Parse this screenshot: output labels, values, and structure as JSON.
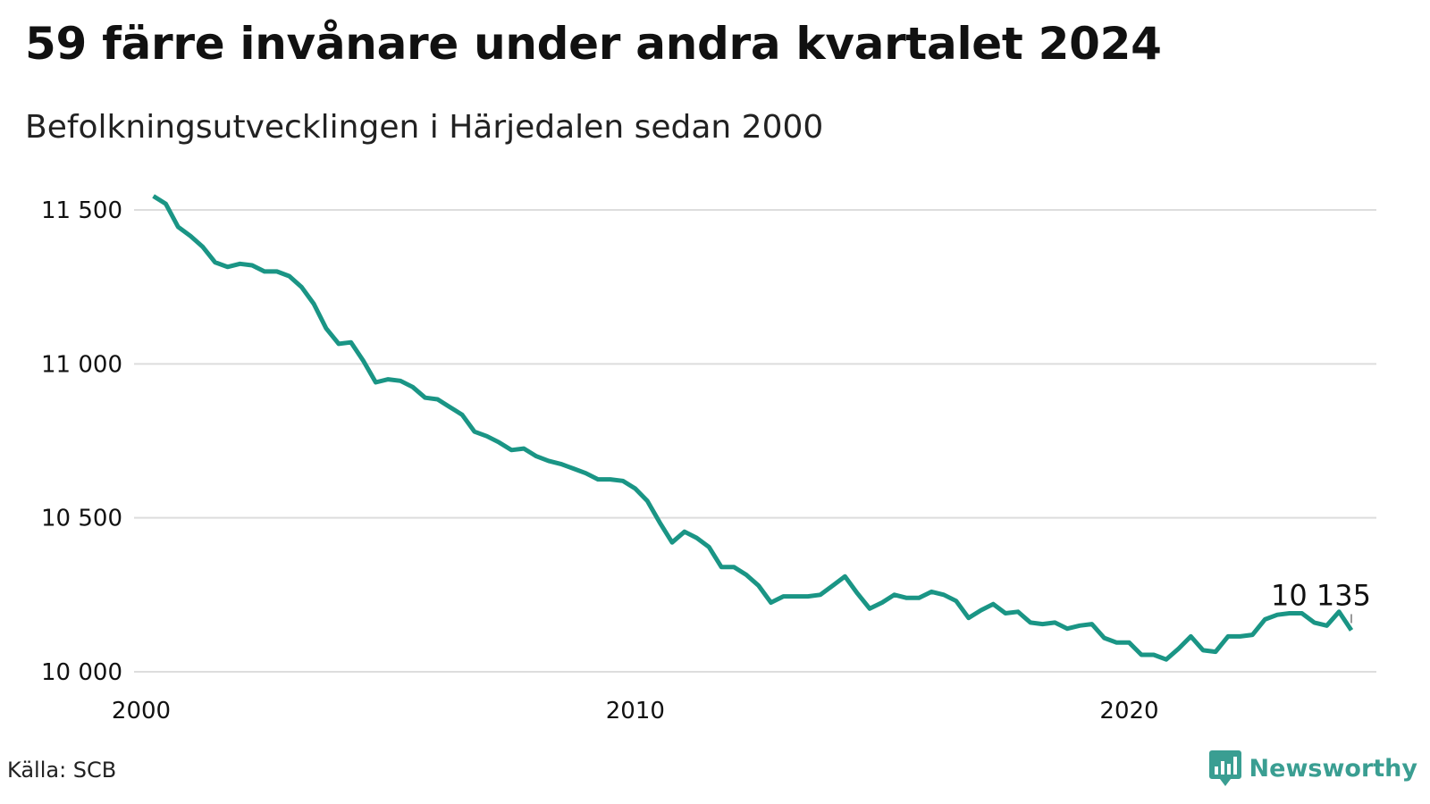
{
  "title": "59 färre invånare under andra kvartalet 2024",
  "subtitle": "Befolkningsutvecklingen i Härjedalen sedan 2000",
  "source": "Källa: SCB",
  "brand": {
    "name": "Newsworthy",
    "icon": "newsworthy-logo-icon",
    "color": "#3a9e92"
  },
  "colors": {
    "line": "#1a9585",
    "grid": "#dddddd",
    "text": "#111111"
  },
  "chart_data": {
    "type": "line",
    "title": "59 färre invånare under andra kvartalet 2024",
    "subtitle": "Befolkningsutvecklingen i Härjedalen sedan 2000",
    "xlabel": "",
    "ylabel": "",
    "xlim": [
      "2000-01-01",
      "2025-01-01"
    ],
    "ylim": [
      10000,
      11500
    ],
    "xticks": [
      "2000",
      "2010",
      "2020"
    ],
    "yticks": [
      {
        "value": 10000,
        "label": "10 000"
      },
      {
        "value": 10500,
        "label": "10 500"
      },
      {
        "value": 11000,
        "label": "11 000"
      },
      {
        "value": 11500,
        "label": "11 500"
      }
    ],
    "grid": "horizontal",
    "legend": "none",
    "annotation": {
      "label": "10 135",
      "x": "2024-06-30",
      "y": 10135
    },
    "series": [
      {
        "color": "#1a9585",
        "points": [
          [
            "2000-03-31",
            11545
          ],
          [
            "2000-06-30",
            11520
          ],
          [
            "2000-09-30",
            11445
          ],
          [
            "2000-12-31",
            11415
          ],
          [
            "2001-03-31",
            11380
          ],
          [
            "2001-06-30",
            11330
          ],
          [
            "2001-09-30",
            11315
          ],
          [
            "2001-12-31",
            11325
          ],
          [
            "2002-03-31",
            11320
          ],
          [
            "2002-06-30",
            11300
          ],
          [
            "2002-09-30",
            11300
          ],
          [
            "2002-12-31",
            11285
          ],
          [
            "2003-03-31",
            11250
          ],
          [
            "2003-06-30",
            11195
          ],
          [
            "2003-09-30",
            11115
          ],
          [
            "2003-12-31",
            11065
          ],
          [
            "2004-03-31",
            11070
          ],
          [
            "2004-06-30",
            11010
          ],
          [
            "2004-09-30",
            10940
          ],
          [
            "2004-12-31",
            10950
          ],
          [
            "2005-03-31",
            10945
          ],
          [
            "2005-06-30",
            10925
          ],
          [
            "2005-09-30",
            10890
          ],
          [
            "2005-12-31",
            10885
          ],
          [
            "2006-03-31",
            10860
          ],
          [
            "2006-06-30",
            10835
          ],
          [
            "2006-09-30",
            10780
          ],
          [
            "2006-12-31",
            10765
          ],
          [
            "2007-03-31",
            10745
          ],
          [
            "2007-06-30",
            10720
          ],
          [
            "2007-09-30",
            10725
          ],
          [
            "2007-12-31",
            10700
          ],
          [
            "2008-03-31",
            10685
          ],
          [
            "2008-06-30",
            10675
          ],
          [
            "2008-09-30",
            10660
          ],
          [
            "2008-12-31",
            10645
          ],
          [
            "2009-03-31",
            10625
          ],
          [
            "2009-06-30",
            10625
          ],
          [
            "2009-09-30",
            10620
          ],
          [
            "2009-12-31",
            10595
          ],
          [
            "2010-03-31",
            10555
          ],
          [
            "2010-06-30",
            10485
          ],
          [
            "2010-09-30",
            10420
          ],
          [
            "2010-12-31",
            10455
          ],
          [
            "2011-03-31",
            10435
          ],
          [
            "2011-06-30",
            10405
          ],
          [
            "2011-09-30",
            10340
          ],
          [
            "2011-12-31",
            10340
          ],
          [
            "2012-03-31",
            10315
          ],
          [
            "2012-06-30",
            10280
          ],
          [
            "2012-09-30",
            10225
          ],
          [
            "2012-12-31",
            10245
          ],
          [
            "2013-03-31",
            10245
          ],
          [
            "2013-06-30",
            10245
          ],
          [
            "2013-09-30",
            10250
          ],
          [
            "2013-12-31",
            10280
          ],
          [
            "2014-03-31",
            10310
          ],
          [
            "2014-06-30",
            10255
          ],
          [
            "2014-09-30",
            10205
          ],
          [
            "2014-12-31",
            10225
          ],
          [
            "2015-03-31",
            10250
          ],
          [
            "2015-06-30",
            10240
          ],
          [
            "2015-09-30",
            10240
          ],
          [
            "2015-12-31",
            10260
          ],
          [
            "2016-03-31",
            10250
          ],
          [
            "2016-06-30",
            10230
          ],
          [
            "2016-09-30",
            10175
          ],
          [
            "2016-12-31",
            10200
          ],
          [
            "2017-03-31",
            10220
          ],
          [
            "2017-06-30",
            10190
          ],
          [
            "2017-09-30",
            10195
          ],
          [
            "2017-12-31",
            10160
          ],
          [
            "2018-03-31",
            10155
          ],
          [
            "2018-06-30",
            10160
          ],
          [
            "2018-09-30",
            10140
          ],
          [
            "2018-12-31",
            10150
          ],
          [
            "2019-03-31",
            10155
          ],
          [
            "2019-06-30",
            10110
          ],
          [
            "2019-09-30",
            10095
          ],
          [
            "2019-12-31",
            10095
          ],
          [
            "2020-03-31",
            10055
          ],
          [
            "2020-06-30",
            10055
          ],
          [
            "2020-09-30",
            10040
          ],
          [
            "2020-12-31",
            10075
          ],
          [
            "2021-03-31",
            10115
          ],
          [
            "2021-06-30",
            10070
          ],
          [
            "2021-09-30",
            10065
          ],
          [
            "2021-12-31",
            10115
          ],
          [
            "2022-03-31",
            10115
          ],
          [
            "2022-06-30",
            10120
          ],
          [
            "2022-09-30",
            10170
          ],
          [
            "2022-12-31",
            10185
          ],
          [
            "2023-03-31",
            10190
          ],
          [
            "2023-06-30",
            10190
          ],
          [
            "2023-09-30",
            10160
          ],
          [
            "2023-12-31",
            10150
          ],
          [
            "2024-03-31",
            10195
          ],
          [
            "2024-06-30",
            10135
          ]
        ]
      }
    ]
  }
}
